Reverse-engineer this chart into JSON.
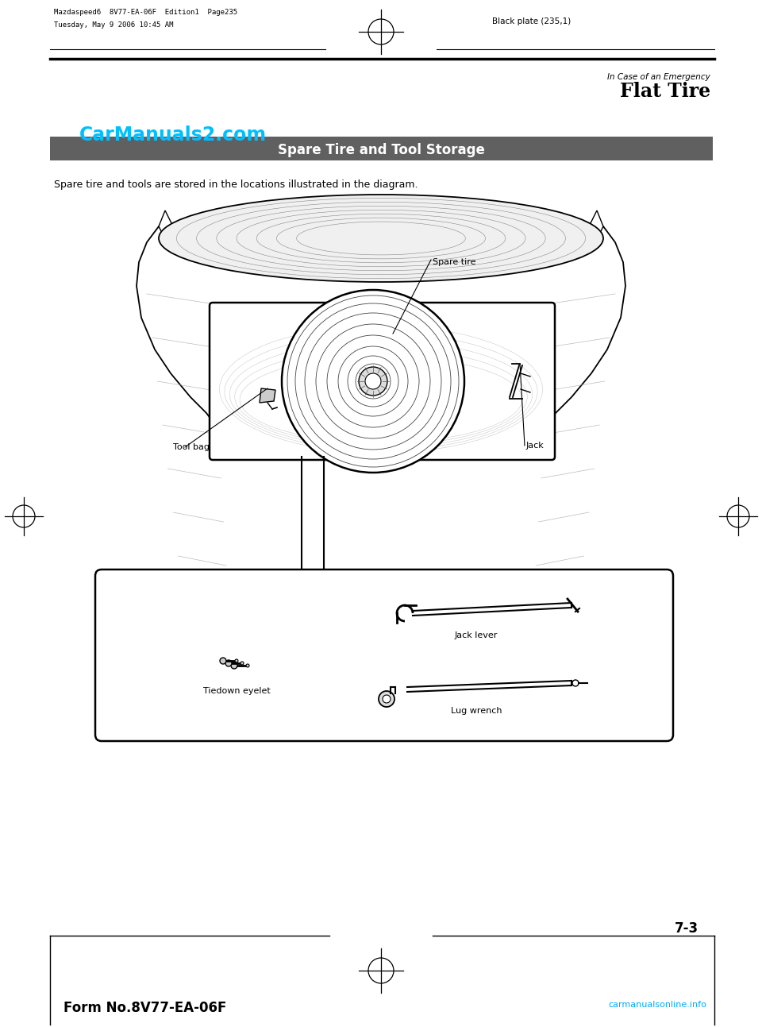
{
  "bg_color": "#ffffff",
  "page_width": 9.6,
  "page_height": 12.93,
  "header_line1": "Mazdaspeed6  8V77-EA-06F  Edition1  Page235",
  "header_line2": "Tuesday, May 9 2006 10:45 AM",
  "header_right": "Black plate (235,1)",
  "top_right_label1": "In Case of an Emergency",
  "top_right_label2": "Flat Tire",
  "carmanuals_text": "CarManuals2.com",
  "carmanuals_color": "#00bfff",
  "section_title": "Spare Tire and Tool Storage",
  "section_bg": "#606060",
  "section_text_color": "#ffffff",
  "body_text": "Spare tire and tools are stored in the locations illustrated in the diagram.",
  "label_spare_tire": "Spare tire",
  "label_tool_bag": "Tool bag",
  "label_jack": "Jack",
  "label_jack_lever": "Jack lever",
  "label_tiedown": "Tiedown eyelet",
  "label_lug_wrench": "Lug wrench",
  "footer_left": "Form No.8V77-EA-06F",
  "footer_right": "carmanualsonline.info",
  "page_number": "7-3"
}
